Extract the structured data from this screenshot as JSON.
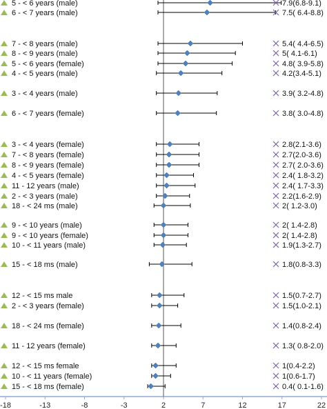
{
  "chart_data": {
    "type": "forest",
    "xlim": [
      -18,
      22
    ],
    "x_ticks": [
      -18,
      -13,
      -8,
      -3,
      2,
      7,
      12,
      17,
      22
    ],
    "reference_line_x": 2,
    "grid": false,
    "colors": {
      "marker": "#4f81bd",
      "triangle": "#9bbb59",
      "cross": "#8064a2",
      "axis": "#8faadc",
      "whisker": "#000000"
    },
    "rows": [
      {
        "label": "5 - < 6 years (male)",
        "value": 7.9,
        "lo": 6.8,
        "hi": 9.1,
        "ci_text": "7.9(6.8-9.1)",
        "bar_lo": 1.3,
        "bar_hi": 16.9
      },
      {
        "label": "6 - < 7 years (male)",
        "value": 7.5,
        "lo": 6.4,
        "hi": 8.8,
        "ci_text": "7.5( 6.4-8.8)",
        "bar_lo": 1.3,
        "bar_hi": 16.2
      },
      {
        "label": "7 - < 8 years (male)",
        "value": 5.4,
        "lo": 4.4,
        "hi": 6.5,
        "ci_text": "5.4( 4.4-6.5)",
        "bar_lo": 1.3,
        "bar_hi": 12.0
      },
      {
        "label": "8 - < 9 years (male)",
        "value": 5.0,
        "lo": 4.1,
        "hi": 6.1,
        "ci_text": "5( 4.1-6.1)",
        "bar_lo": 1.3,
        "bar_hi": 11.1
      },
      {
        "label": "5 - < 6 years (female)",
        "value": 4.8,
        "lo": 3.9,
        "hi": 5.8,
        "ci_text": "4.8( 3.9-5.8)",
        "bar_lo": 1.3,
        "bar_hi": 10.7
      },
      {
        "label": "4 - < 5 years (male)",
        "value": 4.2,
        "lo": 3.4,
        "hi": 5.1,
        "ci_text": "4.2(3.4-5.1)",
        "bar_lo": 1.1,
        "bar_hi": 9.4
      },
      {
        "label": "3 - < 4 years (male)",
        "value": 3.9,
        "lo": 3.2,
        "hi": 4.8,
        "ci_text": "3.9( 3.2-4.8)",
        "bar_lo": 1.1,
        "bar_hi": 8.8
      },
      {
        "label": "6 - < 7 years (female)",
        "value": 3.8,
        "lo": 3.0,
        "hi": 4.8,
        "ci_text": "3.8( 3.0-4.8)",
        "bar_lo": 1.1,
        "bar_hi": 8.7
      },
      {
        "label": "3 - < 4 years (female)",
        "value": 2.8,
        "lo": 2.1,
        "hi": 3.6,
        "ci_text": "2.8(2.1-3.6)",
        "bar_lo": 1.1,
        "bar_hi": 6.5
      },
      {
        "label": "7 - < 8 years (female)",
        "value": 2.7,
        "lo": 2.0,
        "hi": 3.6,
        "ci_text": "2.7(2.0-3.6)",
        "bar_lo": 1.1,
        "bar_hi": 6.5
      },
      {
        "label": "8 - < 9 years (female)",
        "value": 2.7,
        "lo": 2.0,
        "hi": 3.6,
        "ci_text": "2.7( 2.0-3.6)",
        "bar_lo": 1.1,
        "bar_hi": 6.5
      },
      {
        "label": "4 - < 5 years (female)",
        "value": 2.4,
        "lo": 1.8,
        "hi": 3.2,
        "ci_text": "2.4( 1.8-3.2)",
        "bar_lo": 1.1,
        "bar_hi": 5.8
      },
      {
        "label": "11 - 12 years (male)",
        "value": 2.4,
        "lo": 1.7,
        "hi": 3.3,
        "ci_text": "2.4( 1.7-3.3)",
        "bar_lo": 1.1,
        "bar_hi": 6.0
      },
      {
        "label": "2 - < 3 years (male)",
        "value": 2.2,
        "lo": 1.6,
        "hi": 2.9,
        "ci_text": "2.2(1.6-2.9)",
        "bar_lo": 1.1,
        "bar_hi": 5.3
      },
      {
        "label": "18 - < 24 ms (male)",
        "value": 2.0,
        "lo": 1.2,
        "hi": 3.0,
        "ci_text": "2( 1.2-3.0)",
        "bar_lo": 0.8,
        "bar_hi": 5.4
      },
      {
        "label": "9 - < 10 years (male)",
        "value": 2.0,
        "lo": 1.4,
        "hi": 2.8,
        "ci_text": "2( 1.4-2.8)",
        "bar_lo": 0.8,
        "bar_hi": 5.1
      },
      {
        "label": "9 - < 10 years (female)",
        "value": 2.0,
        "lo": 1.4,
        "hi": 2.8,
        "ci_text": "2( 1.4-2.8)",
        "bar_lo": 0.8,
        "bar_hi": 5.1
      },
      {
        "label": "10 - < 11 years (male)",
        "value": 1.9,
        "lo": 1.3,
        "hi": 2.7,
        "ci_text": "1.9(1.3-2.7)",
        "bar_lo": 0.8,
        "bar_hi": 4.9
      },
      {
        "label": "15 - < 18 ms (male)",
        "value": 1.8,
        "lo": 0.8,
        "hi": 3.3,
        "ci_text": "1.8(0.8-3.3)",
        "bar_lo": 0.2,
        "bar_hi": 5.6
      },
      {
        "label": "12 - < 15 ms male",
        "value": 1.5,
        "lo": 0.7,
        "hi": 2.7,
        "ci_text": "1.5(0.7-2.7)",
        "bar_lo": 0.5,
        "bar_hi": 4.6
      },
      {
        "label": "2 - < 3 years (female)",
        "value": 1.5,
        "lo": 1.0,
        "hi": 2.1,
        "ci_text": "1.5(1.0-2.1)",
        "bar_lo": 0.5,
        "bar_hi": 3.8
      },
      {
        "label": "18 - < 24 ms (female)",
        "value": 1.4,
        "lo": 0.8,
        "hi": 2.4,
        "ci_text": "1.4(0.8-2.4)",
        "bar_lo": 0.5,
        "bar_hi": 4.2
      },
      {
        "label": "11 - 12 years (female)",
        "value": 1.3,
        "lo": 0.8,
        "hi": 2.0,
        "ci_text": "1.3( 0.8-2.0)",
        "bar_lo": 0.5,
        "bar_hi": 3.6
      },
      {
        "label": "12 - < 15 ms female",
        "value": 1.0,
        "lo": 0.4,
        "hi": 2.2,
        "ci_text": "1(0.4-2.2)",
        "bar_lo": 0.5,
        "bar_hi": 3.6
      },
      {
        "label": "10 - < 11 years (female)",
        "value": 1.0,
        "lo": 0.6,
        "hi": 1.7,
        "ci_text": "1(0.6-1.7)",
        "bar_lo": 0.5,
        "bar_hi": 2.9
      },
      {
        "label": "15 - < 18 ms (female)",
        "value": 0.4,
        "lo": 0.1,
        "hi": 1.6,
        "ci_text": "0.4( 0.1-1.6)",
        "bar_lo": 0.0,
        "bar_hi": 2.2
      }
    ]
  }
}
